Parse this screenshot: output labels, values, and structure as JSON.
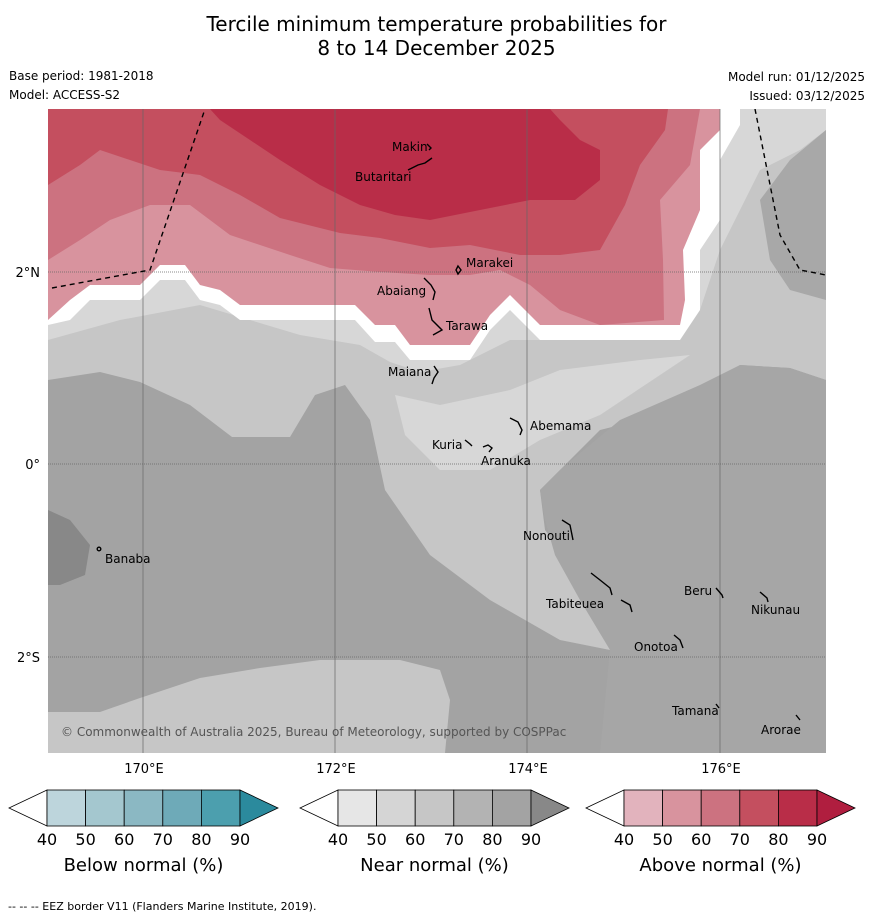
{
  "title_line1": "Tercile minimum temperature probabilities for",
  "title_line2": "8 to 14 December 2025",
  "base_period": "Base period: 1981-2018",
  "model": "Model: ACCESS-S2",
  "model_run": "Model run: 01/12/2025",
  "issued": "Issued: 03/12/2025",
  "copyright": "© Commonwealth of Australia 2025, Bureau of Meteorology, supported by COSPPac",
  "footer": "--  --  -- EEZ border V11 (Flanders Marine Institute, 2019).",
  "map": {
    "lat_labels": [
      "2°N",
      "0°",
      "2°S"
    ],
    "lon_labels": [
      "170°E",
      "172°E",
      "174°E",
      "176°E"
    ],
    "places": [
      "Makin",
      "Butaritari",
      "Marakei",
      "Abaiang",
      "Tarawa",
      "Maiana",
      "Abemama",
      "Kuria",
      "Aranuka",
      "Banaba",
      "Nonouti",
      "Beru",
      "Tabiteuea",
      "Nikunau",
      "Onotoa",
      "Tamana",
      "Arorae"
    ]
  },
  "colorbars": [
    {
      "label": "Below normal (%)",
      "ticks": [
        "40",
        "50",
        "60",
        "70",
        "80",
        "90"
      ],
      "colors": [
        "#ffffff",
        "#bdd5dc",
        "#a4c7cf",
        "#8bb8c3",
        "#6eaab8",
        "#4c9fae",
        "#2b8a9d"
      ]
    },
    {
      "label": "Near normal (%)",
      "ticks": [
        "40",
        "50",
        "60",
        "70",
        "80",
        "90"
      ],
      "colors": [
        "#ffffff",
        "#e6e6e6",
        "#d5d5d5",
        "#c6c6c6",
        "#b3b3b3",
        "#a3a3a3",
        "#888888"
      ]
    },
    {
      "label": "Above normal (%)",
      "ticks": [
        "40",
        "50",
        "60",
        "70",
        "80",
        "90"
      ],
      "colors": [
        "#ffffff",
        "#e2b3bd",
        "#d8939e",
        "#cc7280",
        "#c44f5f",
        "#b92d48",
        "#b01e3f"
      ]
    }
  ]
}
